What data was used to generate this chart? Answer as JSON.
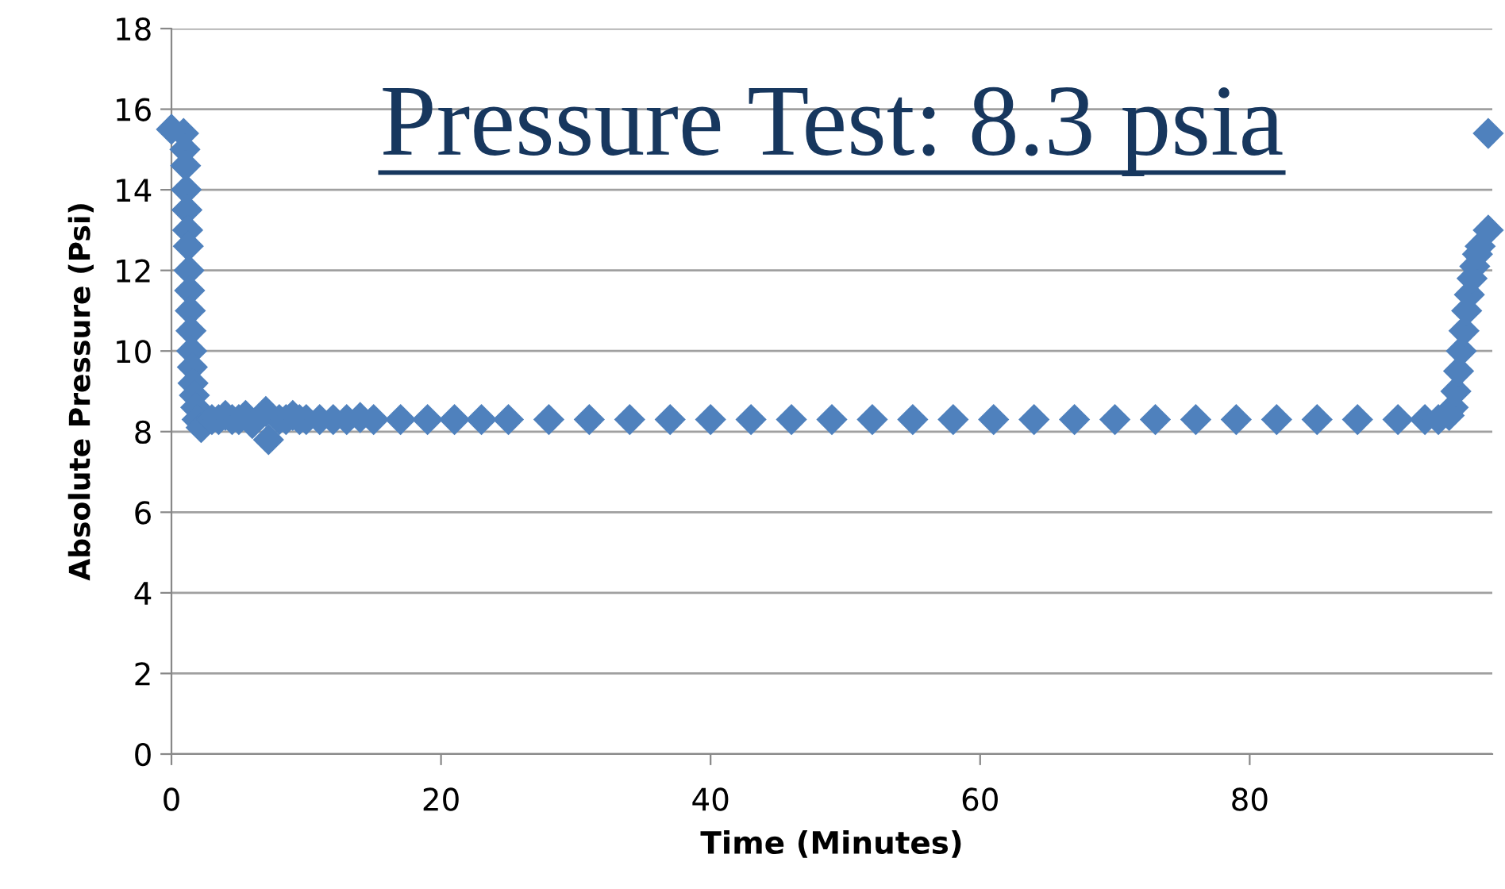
{
  "chart_data": {
    "type": "scatter",
    "title": "Pressure Test: 8.3 psia",
    "xlabel": "Time (Minutes)",
    "ylabel": "Absolute Pressure (Psi)",
    "xlim": [
      0,
      98
    ],
    "xticks": [
      0,
      20,
      40,
      60,
      80
    ],
    "ylim": [
      0,
      18
    ],
    "yticks": [
      0,
      2,
      4,
      6,
      8,
      10,
      12,
      14,
      16,
      18
    ],
    "grid": "y",
    "marker": "diamond",
    "legend": false,
    "series": [
      {
        "color": "#4f81bd",
        "x": [
          0,
          0.9,
          1.0,
          1.05,
          1.1,
          1.15,
          1.2,
          1.25,
          1.3,
          1.35,
          1.4,
          1.45,
          1.5,
          1.55,
          1.6,
          1.7,
          1.8,
          1.9,
          2.2,
          3.0,
          3.5,
          4.0,
          4.5,
          5.0,
          5.5,
          6.0,
          7.0,
          7.2,
          8.0,
          8.5,
          9.0,
          9.5,
          10,
          11,
          12,
          13,
          14,
          15,
          17,
          19,
          21,
          23,
          25,
          28,
          31,
          34,
          37,
          40,
          43,
          46,
          49,
          52,
          55,
          58,
          61,
          64,
          67,
          70,
          73,
          76,
          79,
          82,
          85,
          88,
          91,
          93,
          94,
          94.8,
          95.1,
          95.3,
          95.5,
          95.7,
          95.9,
          96.1,
          96.3,
          96.5,
          96.7,
          96.9,
          97.1,
          97.7,
          97.7
        ],
        "values": [
          15.5,
          15.4,
          15.0,
          14.6,
          14.0,
          13.5,
          13.0,
          12.6,
          12.0,
          11.5,
          11.0,
          10.5,
          10.0,
          9.6,
          9.2,
          8.9,
          8.6,
          8.3,
          8.1,
          8.3,
          8.3,
          8.4,
          8.3,
          8.3,
          8.4,
          8.2,
          8.5,
          7.8,
          8.3,
          8.3,
          8.4,
          8.3,
          8.3,
          8.3,
          8.3,
          8.3,
          8.35,
          8.3,
          8.3,
          8.3,
          8.3,
          8.3,
          8.3,
          8.3,
          8.3,
          8.3,
          8.3,
          8.3,
          8.3,
          8.3,
          8.3,
          8.3,
          8.3,
          8.3,
          8.3,
          8.3,
          8.3,
          8.3,
          8.3,
          8.3,
          8.3,
          8.3,
          8.3,
          8.3,
          8.3,
          8.3,
          8.3,
          8.4,
          8.6,
          9.0,
          9.5,
          10.0,
          10.5,
          11.0,
          11.4,
          11.8,
          12.1,
          12.4,
          12.6,
          13.0,
          15.4
        ]
      }
    ]
  }
}
